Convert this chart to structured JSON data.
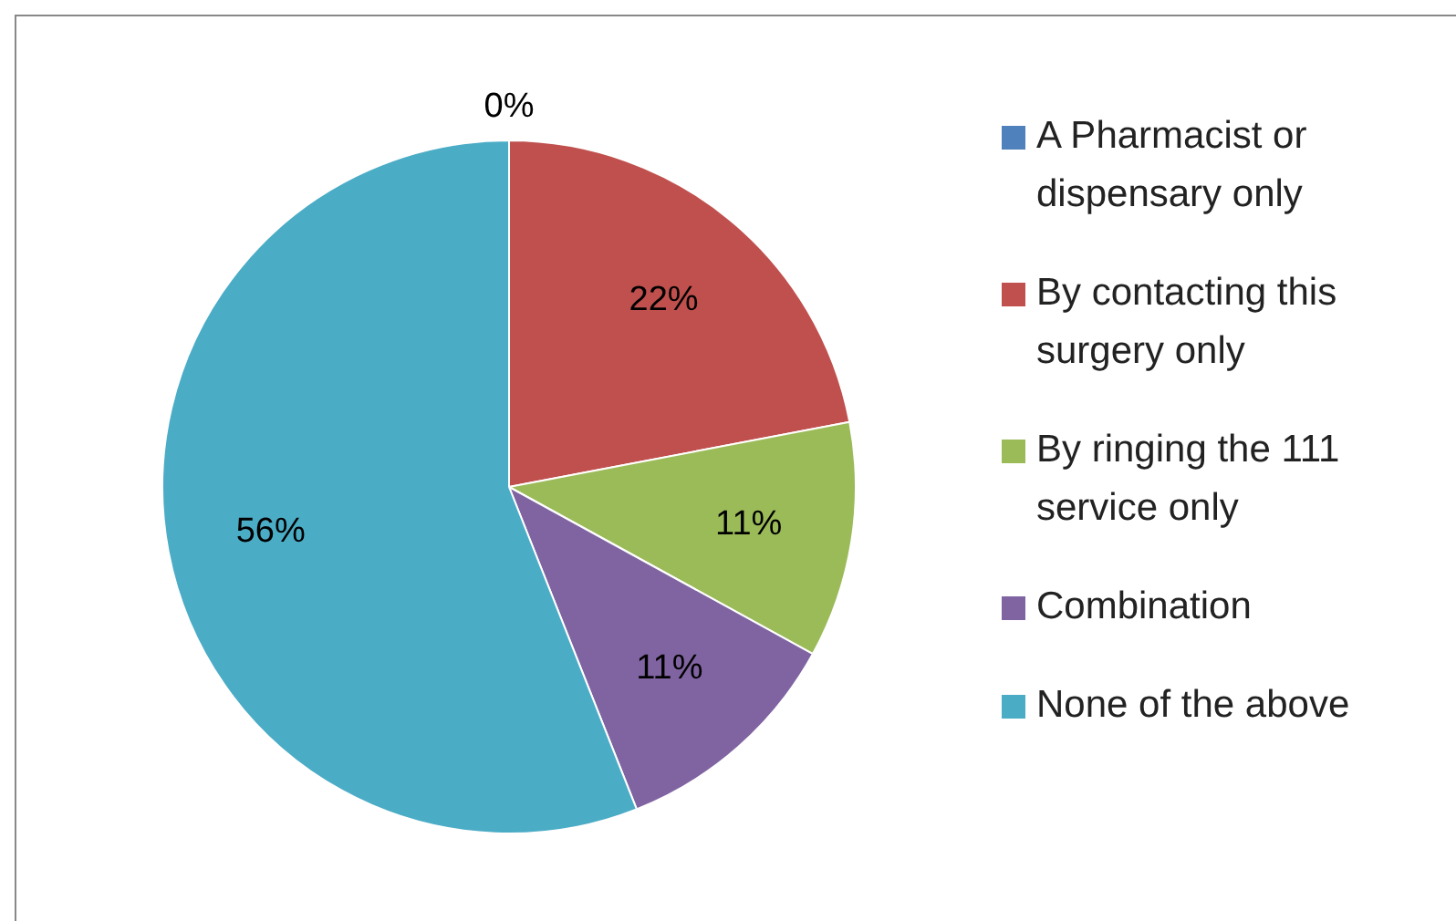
{
  "chart_data": {
    "type": "pie",
    "categories": [
      "A Pharmacist or dispensary only",
      "By contacting this surgery only",
      "By ringing the 111 service only",
      "Combination",
      "None of the above"
    ],
    "values": [
      0,
      22,
      11,
      11,
      56
    ],
    "colors": [
      "#4f81bd",
      "#c0504d",
      "#9bbb59",
      "#8064a2",
      "#4bacc6"
    ],
    "value_labels": [
      "0%",
      "22%",
      "11%",
      "11%",
      "56%"
    ],
    "legend": "right"
  }
}
